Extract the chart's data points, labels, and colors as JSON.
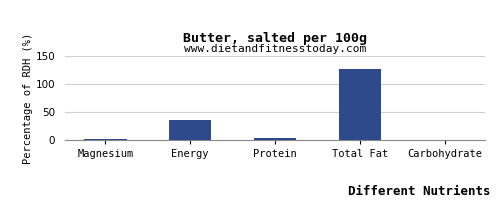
{
  "title": "Butter, salted per 100g",
  "subtitle": "www.dietandfitnesstoday.com",
  "xlabel": "Different Nutrients",
  "ylabel": "Percentage of RDH (%)",
  "categories": [
    "Magnesium",
    "Energy",
    "Protein",
    "Total Fat",
    "Carbohydrate"
  ],
  "values": [
    2,
    36,
    3,
    126,
    0
  ],
  "bar_color": "#2e4a8c",
  "ylim": [
    0,
    150
  ],
  "yticks": [
    0,
    50,
    100,
    150
  ],
  "background_color": "#ffffff",
  "plot_bg_color": "#ffffff",
  "title_fontsize": 9.5,
  "subtitle_fontsize": 8,
  "xlabel_fontsize": 9,
  "ylabel_fontsize": 7.5,
  "tick_fontsize": 7.5,
  "grid_color": "#d0d0d0"
}
